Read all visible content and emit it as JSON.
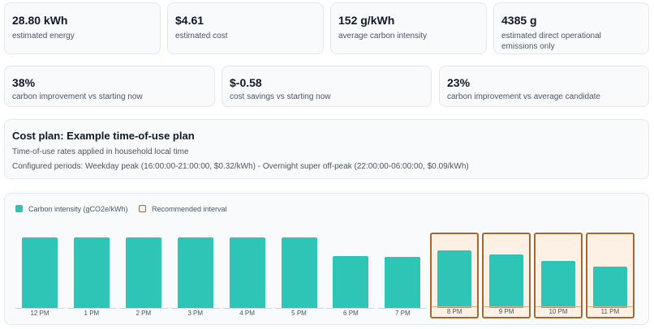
{
  "metrics_row1": [
    {
      "value": "28.80 kWh",
      "label": "estimated energy"
    },
    {
      "value": "$4.61",
      "label": "estimated cost"
    },
    {
      "value": "152 g/kWh",
      "label": "average carbon intensity"
    },
    {
      "value": "4385 g",
      "label": "estimated direct operational emissions only"
    }
  ],
  "metrics_row2": [
    {
      "value": "38%",
      "label": "carbon improvement vs starting now"
    },
    {
      "value": "$-0.58",
      "label": "cost savings vs starting now"
    },
    {
      "value": "23%",
      "label": "carbon improvement vs average candidate"
    }
  ],
  "cost_plan": {
    "title": "Cost plan: Example time-of-use plan",
    "line1": "Time-of-use rates applied in household local time",
    "line2": "Configured periods: Weekday peak (16:00:00-21:00:00, $0.32/kWh) - Overnight super off-peak (22:00:00-06:00:00, $0.09/kWh)"
  },
  "legend": {
    "carbon": "Carbon intensity (gCO2e/kWh)",
    "recommended": "Recommended interval"
  },
  "colors": {
    "bar": "#2ec4b6",
    "recommended_border": "#a8672c",
    "recommended_fill": "#fdf1e5"
  },
  "chart_data": {
    "type": "bar",
    "categories": [
      "12 PM",
      "1 PM",
      "2 PM",
      "3 PM",
      "4 PM",
      "5 PM",
      "6 PM",
      "7 PM",
      "8 PM",
      "9 PM",
      "10 PM",
      "11 PM"
    ],
    "values": [
      180,
      180,
      180,
      180,
      180,
      180,
      132,
      130,
      146,
      136,
      120,
      106
    ],
    "recommended": [
      false,
      false,
      false,
      false,
      false,
      false,
      false,
      false,
      true,
      true,
      true,
      true
    ],
    "legend": [
      "Carbon intensity (gCO2e/kWh)",
      "Recommended interval"
    ]
  }
}
